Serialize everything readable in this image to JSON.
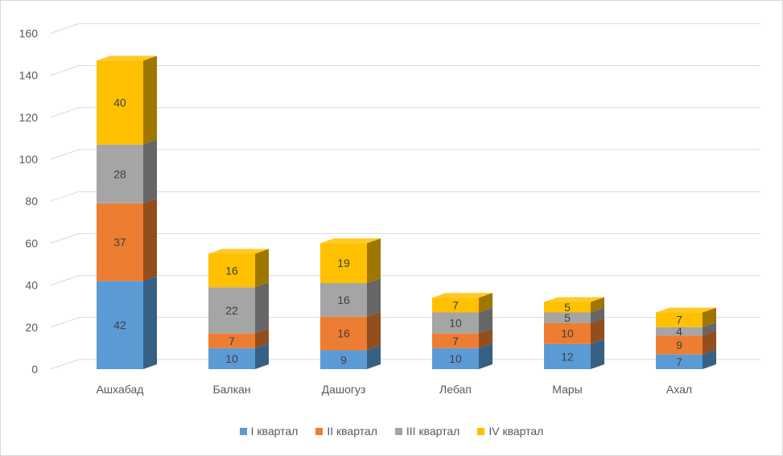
{
  "chart_data": {
    "type": "bar",
    "stacked": true,
    "three_d": true,
    "categories": [
      "Ашхабад",
      "Балкан",
      "Дашогуз",
      "Лебап",
      "Мары",
      "Ахал"
    ],
    "series": [
      {
        "name": "I квартал",
        "color": "#5B9BD5",
        "values": [
          42,
          10,
          9,
          10,
          12,
          7
        ]
      },
      {
        "name": "II квартал",
        "color": "#ED7D31",
        "values": [
          37,
          7,
          16,
          7,
          10,
          9
        ]
      },
      {
        "name": "III квартал",
        "color": "#A5A5A5",
        "values": [
          28,
          22,
          16,
          10,
          5,
          4
        ]
      },
      {
        "name": "IV квартал",
        "color": "#FFC000",
        "values": [
          40,
          16,
          19,
          7,
          5,
          7
        ]
      }
    ],
    "ylim": [
      0,
      160
    ],
    "yticks": [
      0,
      20,
      40,
      60,
      80,
      100,
      120,
      140,
      160
    ],
    "grid": true,
    "legend_position": "bottom",
    "data_labels": true
  }
}
